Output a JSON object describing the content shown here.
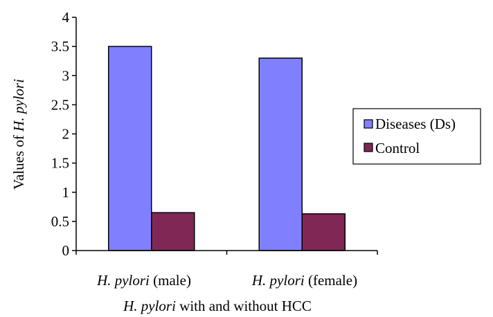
{
  "chart_data": {
    "type": "bar",
    "categories": [
      {
        "italic": "H. pylori",
        "rest": " (male)"
      },
      {
        "italic": "H. pylori",
        "rest": " (female)"
      }
    ],
    "series": [
      {
        "name": "Diseases (Ds)",
        "values": [
          3.5,
          3.3
        ],
        "color": "#8080ff"
      },
      {
        "name": "Control",
        "values": [
          0.65,
          0.63
        ],
        "color": "#7f2755"
      }
    ],
    "ylim": [
      0,
      4
    ],
    "yticks": [
      "0",
      "0.5",
      "1",
      "1.5",
      "2",
      "2.5",
      "3",
      "3.5",
      "4"
    ],
    "ylabel": {
      "prefix": "Values of ",
      "italic": "H. pylori"
    },
    "xlabel": {
      "italic": "H. pylori",
      "rest": " with and without HCC"
    },
    "legend": {
      "placement": "right"
    }
  }
}
